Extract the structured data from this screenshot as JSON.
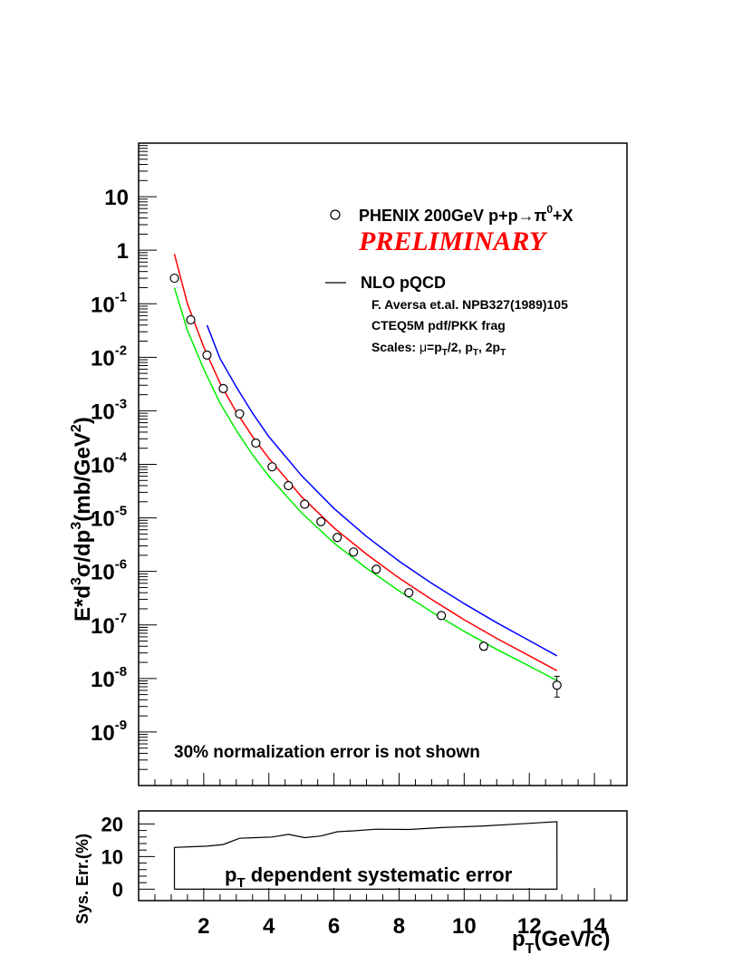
{
  "chart_data": [
    {
      "type": "scatter",
      "xlabel": "p",
      "xlabel_sub": "T",
      "xlabel_tail": "(GeV/c)",
      "ylabel": "E*d",
      "ylabel_sup1": "3",
      "ylabel_mid": "σ/dp",
      "ylabel_sup2": "3",
      "ylabel_mid2": "(mb/GeV",
      "ylabel_sup3": "2",
      "ylabel_tail": ")",
      "xlim": [
        0,
        15
      ],
      "ylim": [
        1e-10,
        100.0
      ],
      "y_scale": "log",
      "x_ticks": [
        "2",
        "4",
        "6",
        "8",
        "10",
        "12",
        "14"
      ],
      "y_ticks": [
        {
          "base": "10",
          "exp": ""
        },
        {
          "base": "1",
          "exp": ""
        },
        {
          "base": "10",
          "exp": "-1"
        },
        {
          "base": "10",
          "exp": "-2"
        },
        {
          "base": "10",
          "exp": "-3"
        },
        {
          "base": "10",
          "exp": "-4"
        },
        {
          "base": "10",
          "exp": "-5"
        },
        {
          "base": "10",
          "exp": "-6"
        },
        {
          "base": "10",
          "exp": "-7"
        },
        {
          "base": "10",
          "exp": "-8"
        },
        {
          "base": "10",
          "exp": "-9"
        }
      ],
      "data_series": {
        "x": [
          1.1,
          1.6,
          2.1,
          2.6,
          3.1,
          3.6,
          4.1,
          4.6,
          5.1,
          5.6,
          6.1,
          6.6,
          7.3,
          8.3,
          9.3,
          10.6,
          12.85
        ],
        "y": [
          0.3,
          0.05,
          0.011,
          0.0026,
          0.00088,
          0.00025,
          9e-05,
          4e-05,
          1.8e-05,
          8.5e-06,
          4.3e-06,
          2.3e-06,
          1.1e-06,
          4e-07,
          1.5e-07,
          4e-08,
          7.5e-09
        ],
        "yerr_low": [
          0,
          0,
          0,
          0,
          0,
          0,
          0,
          0,
          0,
          0,
          0,
          0,
          0,
          0,
          0,
          6e-09,
          3e-09
        ],
        "yerr_high": [
          0,
          0,
          0,
          0,
          0,
          0,
          0,
          0,
          0,
          0,
          0,
          0,
          0,
          0,
          0,
          6e-09,
          3.5e-09
        ]
      },
      "curves": [
        {
          "color": "#ff0000",
          "x": [
            1.1,
            1.5,
            2.0,
            2.5,
            3.0,
            3.5,
            4.0,
            5.0,
            6.0,
            7.0,
            8.0,
            9.0,
            10.0,
            11.0,
            12.0,
            12.85
          ],
          "y": [
            0.85,
            0.1,
            0.0155,
            0.0033,
            0.00095,
            0.00033,
            0.00013,
            2.5e-05,
            6.5e-06,
            2.1e-06,
            7.5e-07,
            3e-07,
            1.25e-07,
            5.6e-08,
            2.65e-08,
            1.4e-08
          ]
        },
        {
          "color": "#0000ff",
          "x": [
            2.1,
            2.5,
            3.0,
            3.5,
            4.0,
            5.0,
            6.0,
            7.0,
            8.0,
            9.0,
            10.0,
            11.0,
            12.0,
            12.85
          ],
          "y": [
            0.04,
            0.0095,
            0.0028,
            0.0009,
            0.00033,
            6.2e-05,
            1.5e-05,
            4.5e-06,
            1.55e-06,
            6e-07,
            2.5e-07,
            1.1e-07,
            5.1e-08,
            2.65e-08
          ]
        },
        {
          "color": "#00ee00",
          "x": [
            1.1,
            1.5,
            2.0,
            2.5,
            3.0,
            3.5,
            4.0,
            5.0,
            6.0,
            7.0,
            8.0,
            9.0,
            10.0,
            11.0,
            12.0,
            12.85
          ],
          "y": [
            0.2,
            0.032,
            0.006,
            0.0014,
            0.00043,
            0.00015,
            6e-05,
            1.25e-05,
            3.4e-06,
            1.15e-06,
            4.3e-07,
            1.75e-07,
            7.6e-08,
            3.5e-08,
            1.7e-08,
            9.2e-09
          ]
        }
      ],
      "legend": {
        "data_entry": "PHENIX 200GeV p+p",
        "data_arrow": "→",
        "data_pi": "π",
        "data_pi_sup": "0",
        "data_tail": "+X",
        "preliminary": "PRELIMINARY",
        "nlo_entry": "NLO pQCD",
        "ref1": "F. Aversa et.al. NPB327(1989)105",
        "ref2": "CTEQ5M pdf/PKK frag",
        "ref3_a": "Scales: ",
        "ref3_mu": "μ",
        "ref3_b": "=p",
        "ref3_sub1": "T",
        "ref3_c": "/2, p",
        "ref3_sub2": "T",
        "ref3_d": ", 2p",
        "ref3_sub3": "T"
      },
      "annotation": "30% normalization error is not shown"
    },
    {
      "type": "line",
      "ylabel": "Sys. Err.(%)",
      "xlim": [
        0,
        15
      ],
      "ylim": [
        -3.5,
        24
      ],
      "y_ticks": [
        "20",
        "10",
        "0"
      ],
      "annotation_p": "p",
      "annotation_sub": "T",
      "annotation_tail": " dependent systematic error",
      "band": {
        "x": [
          1.1,
          2.1,
          2.6,
          3.1,
          3.6,
          4.1,
          4.6,
          5.1,
          5.6,
          6.1,
          6.6,
          7.3,
          8.3,
          9.3,
          10.6,
          12.0,
          12.85
        ],
        "top": [
          12.8,
          13.2,
          13.7,
          15.6,
          15.8,
          16.0,
          16.8,
          15.8,
          16.3,
          17.6,
          17.9,
          18.4,
          18.3,
          18.9,
          19.4,
          20.2,
          20.7
        ],
        "bottom": 0
      }
    }
  ]
}
